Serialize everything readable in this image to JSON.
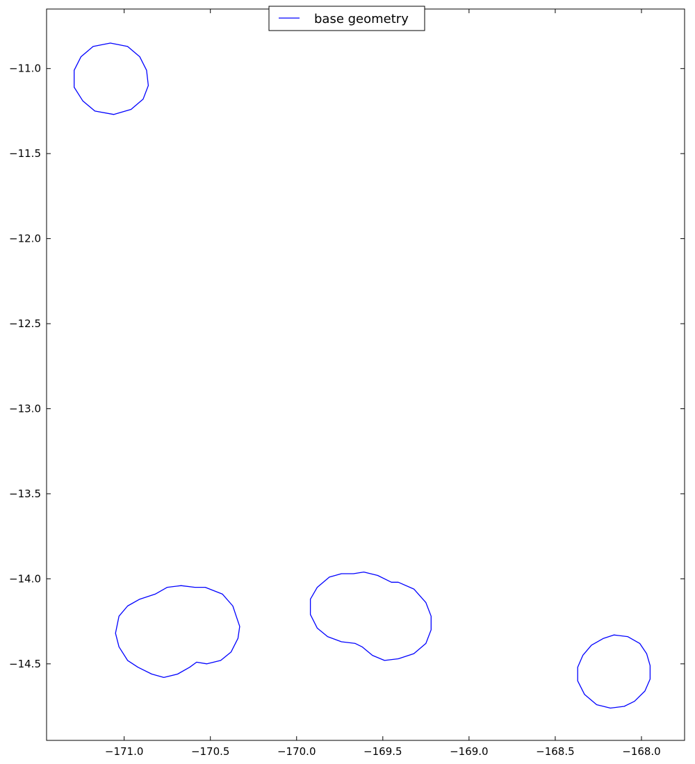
{
  "chart_data": {
    "type": "line",
    "title": "",
    "xlabel": "",
    "ylabel": "",
    "xlim": [
      -171.45,
      -167.75
    ],
    "ylim": [
      -14.95,
      -10.65
    ],
    "grid": false,
    "legend": {
      "placement": "upper-center"
    },
    "xticks": [
      -171.0,
      -170.5,
      -170.0,
      -169.5,
      -169.0,
      -168.5,
      -168.0
    ],
    "xtick_labels": [
      "−171.0",
      "−170.5",
      "−170.0",
      "−169.5",
      "−169.0",
      "−168.5",
      "−168.0"
    ],
    "yticks": [
      -11.0,
      -11.5,
      -12.0,
      -12.5,
      -13.0,
      -13.5,
      -14.0,
      -14.5
    ],
    "ytick_labels": [
      "−11.0",
      "−11.5",
      "−12.0",
      "−12.5",
      "−13.0",
      "−13.5",
      "−14.0",
      "−14.5"
    ],
    "series": [
      {
        "name": "base geometry",
        "color": "#0000ff",
        "polygons": [
          [
            [
              -171.08,
              -10.85
            ],
            [
              -170.98,
              -10.87
            ],
            [
              -170.91,
              -10.93
            ],
            [
              -170.87,
              -11.01
            ],
            [
              -170.86,
              -11.1
            ],
            [
              -170.89,
              -11.18
            ],
            [
              -170.96,
              -11.24
            ],
            [
              -171.06,
              -11.27
            ],
            [
              -171.17,
              -11.25
            ],
            [
              -171.24,
              -11.19
            ],
            [
              -171.29,
              -11.11
            ],
            [
              -171.29,
              -11.01
            ],
            [
              -171.25,
              -10.93
            ],
            [
              -171.18,
              -10.87
            ],
            [
              -171.08,
              -10.85
            ]
          ],
          [
            [
              -170.67,
              -14.04
            ],
            [
              -170.59,
              -14.05
            ],
            [
              -170.53,
              -14.05
            ],
            [
              -170.43,
              -14.09
            ],
            [
              -170.37,
              -14.16
            ],
            [
              -170.35,
              -14.22
            ],
            [
              -170.33,
              -14.28
            ],
            [
              -170.34,
              -14.35
            ],
            [
              -170.38,
              -14.43
            ],
            [
              -170.44,
              -14.48
            ],
            [
              -170.52,
              -14.5
            ],
            [
              -170.58,
              -14.49
            ],
            [
              -170.62,
              -14.52
            ],
            [
              -170.69,
              -14.56
            ],
            [
              -170.77,
              -14.58
            ],
            [
              -170.84,
              -14.56
            ],
            [
              -170.92,
              -14.52
            ],
            [
              -170.98,
              -14.48
            ],
            [
              -171.03,
              -14.4
            ],
            [
              -171.05,
              -14.32
            ],
            [
              -171.03,
              -14.22
            ],
            [
              -170.98,
              -14.16
            ],
            [
              -170.91,
              -14.12
            ],
            [
              -170.82,
              -14.09
            ],
            [
              -170.75,
              -14.05
            ],
            [
              -170.67,
              -14.04
            ]
          ],
          [
            [
              -169.67,
              -13.97
            ],
            [
              -169.61,
              -13.96
            ],
            [
              -169.53,
              -13.98
            ],
            [
              -169.45,
              -14.02
            ],
            [
              -169.41,
              -14.02
            ],
            [
              -169.32,
              -14.06
            ],
            [
              -169.25,
              -14.14
            ],
            [
              -169.22,
              -14.22
            ],
            [
              -169.22,
              -14.3
            ],
            [
              -169.25,
              -14.38
            ],
            [
              -169.32,
              -14.44
            ],
            [
              -169.41,
              -14.47
            ],
            [
              -169.49,
              -14.48
            ],
            [
              -169.56,
              -14.45
            ],
            [
              -169.62,
              -14.4
            ],
            [
              -169.66,
              -14.38
            ],
            [
              -169.74,
              -14.37
            ],
            [
              -169.82,
              -14.34
            ],
            [
              -169.88,
              -14.29
            ],
            [
              -169.92,
              -14.21
            ],
            [
              -169.92,
              -14.12
            ],
            [
              -169.88,
              -14.05
            ],
            [
              -169.81,
              -13.99
            ],
            [
              -169.74,
              -13.97
            ],
            [
              -169.67,
              -13.97
            ]
          ],
          [
            [
              -168.16,
              -14.33
            ],
            [
              -168.08,
              -14.34
            ],
            [
              -168.01,
              -14.38
            ],
            [
              -167.97,
              -14.44
            ],
            [
              -167.95,
              -14.51
            ],
            [
              -167.95,
              -14.59
            ],
            [
              -167.98,
              -14.66
            ],
            [
              -168.04,
              -14.72
            ],
            [
              -168.1,
              -14.75
            ],
            [
              -168.18,
              -14.76
            ],
            [
              -168.26,
              -14.74
            ],
            [
              -168.33,
              -14.68
            ],
            [
              -168.37,
              -14.6
            ],
            [
              -168.37,
              -14.52
            ],
            [
              -168.34,
              -14.45
            ],
            [
              -168.29,
              -14.39
            ],
            [
              -168.22,
              -14.35
            ],
            [
              -168.16,
              -14.33
            ]
          ]
        ]
      }
    ]
  }
}
